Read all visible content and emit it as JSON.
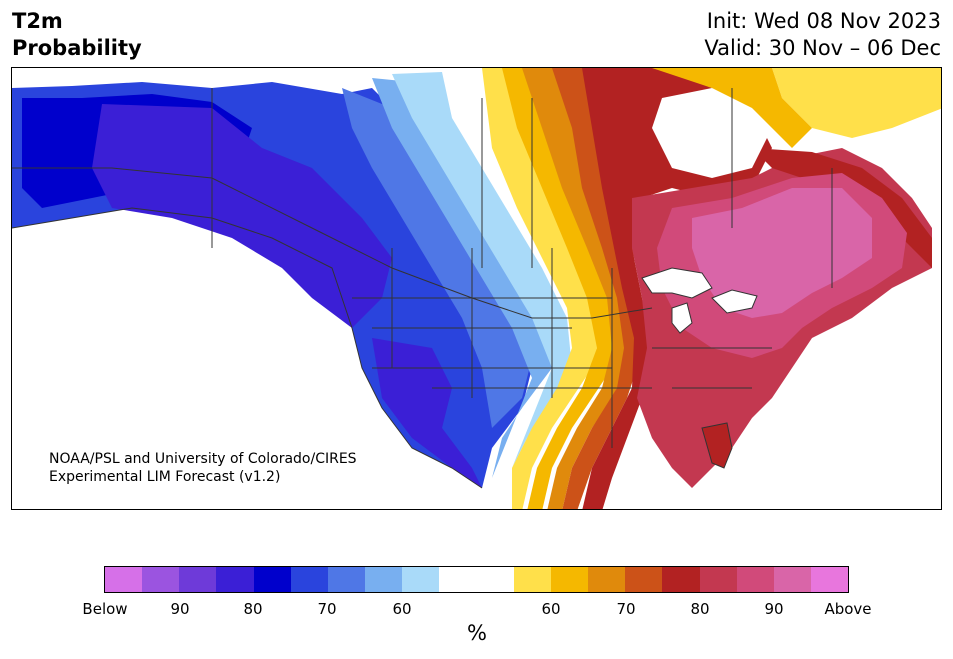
{
  "header": {
    "title_line1": "T2m",
    "title_line2": "Probability",
    "init": "Init: Wed 08 Nov 2023",
    "valid": "Valid: 30 Nov – 06 Dec"
  },
  "credit": {
    "line1": "NOAA/PSL and University of Colorado/CIRES",
    "line2": "Experimental LIM Forecast (v1.2)"
  },
  "colorbar": {
    "colors": [
      "#d670e8",
      "#9b54e0",
      "#6e3ad9",
      "#3b1fd6",
      "#0000cc",
      "#2a44dd",
      "#4f77e6",
      "#78aff0",
      "#a9daf9",
      "#ffffff",
      "#ffffff",
      "#ffe04a",
      "#f5b800",
      "#e08a0c",
      "#cc5218",
      "#b22222",
      "#c33850",
      "#d14a7a",
      "#d965a8",
      "#e876dd"
    ],
    "tick_labels": [
      "Below",
      "90",
      "80",
      "70",
      "60",
      "60",
      "70",
      "80",
      "90",
      "Above"
    ],
    "unit": "%"
  },
  "map": {
    "fields": {
      "alaska": "#0000cc",
      "west_deep": "#3b1fd6",
      "west_mid": "#2a44dd",
      "west_light": "#4f77e6",
      "plains_light": "#78aff0",
      "plains_pale": "#a9daf9",
      "neutral": "#ffffff",
      "yellow": "#ffe04a",
      "gold": "#f5b800",
      "orange": "#e08a0c",
      "burnt": "#cc5218",
      "red": "#b22222",
      "crimson": "#c33850",
      "rose": "#d14a7a",
      "pink": "#d965a8"
    },
    "border_color": "#333333"
  }
}
